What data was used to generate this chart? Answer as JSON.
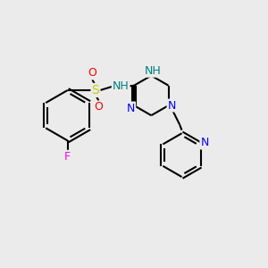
{
  "background_color": "#ebebeb",
  "bond_color": "#000000",
  "bond_width": 1.5,
  "atom_colors": {
    "N": "#0000ff",
    "NH": "#008080",
    "S": "#cccc00",
    "O": "#ff0000",
    "F": "#ff00ff",
    "C": "#000000"
  },
  "fig_width": 3.0,
  "fig_height": 3.0,
  "dpi": 100,
  "xlim": [
    0,
    10
  ],
  "ylim": [
    0,
    10
  ]
}
